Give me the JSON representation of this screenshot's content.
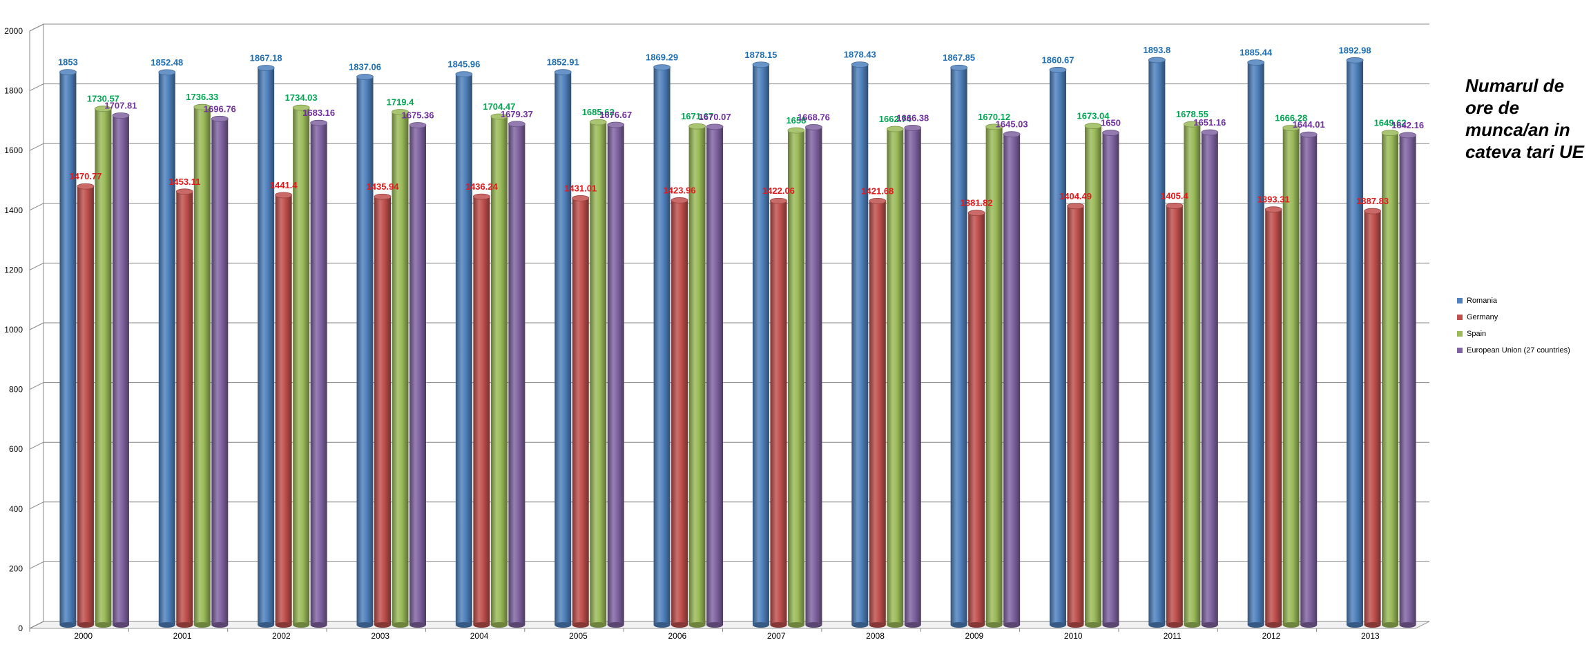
{
  "chart_data": {
    "type": "bar",
    "title": "Numarul de ore de munca/an in cateva tari UE",
    "categories": [
      "2000",
      "2001",
      "2002",
      "2003",
      "2004",
      "2005",
      "2006",
      "2007",
      "2008",
      "2009",
      "2010",
      "2011",
      "2012",
      "2013"
    ],
    "series": [
      {
        "name": "Romania",
        "color": "#4f81bd",
        "label_color": "#1f6fb5",
        "values": [
          1853,
          1852.48,
          1867.18,
          1837.06,
          1845.96,
          1852.91,
          1869.29,
          1878.15,
          1878.43,
          1867.85,
          1860.67,
          1893.8,
          1885.44,
          1892.98
        ]
      },
      {
        "name": "Germany",
        "color": "#c0504d",
        "label_color": "#e31a1c",
        "values": [
          1470.77,
          1453.11,
          1441.4,
          1435.94,
          1436.24,
          1431.01,
          1423.96,
          1422.06,
          1421.68,
          1381.82,
          1404.49,
          1405.4,
          1393.31,
          1387.83
        ]
      },
      {
        "name": "Spain",
        "color": "#9bbb59",
        "label_color": "#00a651",
        "values": [
          1730.57,
          1736.33,
          1734.03,
          1719.4,
          1704.47,
          1685.62,
          1671.67,
          1658,
          1662.74,
          1670.12,
          1673.04,
          1678.55,
          1666.28,
          1649.62
        ]
      },
      {
        "name": "European Union (27 countries)",
        "color": "#8064a2",
        "label_color": "#7030a0",
        "values": [
          1707.81,
          1696.76,
          1683.16,
          1675.36,
          1679.37,
          1676.67,
          1670.07,
          1668.76,
          1666.38,
          1645.03,
          1650,
          1651.16,
          1644.01,
          1642.16
        ]
      }
    ],
    "y_ticks": [
      "0",
      "200",
      "400",
      "600",
      "800",
      "1000",
      "1200",
      "1400",
      "1600",
      "1800",
      "2000"
    ],
    "ylim": [
      0,
      2000
    ],
    "grid": true,
    "legend_position": "right"
  }
}
